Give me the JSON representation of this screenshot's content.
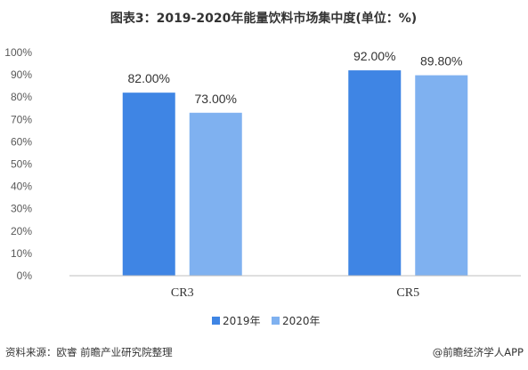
{
  "title": "图表3：2019-2020年能量饮料市场集中度(单位：%)",
  "footer": {
    "source": "资料来源：欧睿 前瞻产业研究院整理",
    "brand": "@前瞻经济学人APP"
  },
  "colors": {
    "series_2019": "#3f85e4",
    "series_2020": "#7fb1f0",
    "axis": "#bfbfbf"
  },
  "chart_data": {
    "type": "bar",
    "title": "图表3：2019-2020年能量饮料市场集中度(单位：%)",
    "categories": [
      "CR3",
      "CR5"
    ],
    "series": [
      {
        "name": "2019年",
        "values": [
          82.0,
          92.0
        ],
        "labels": [
          "82.00%",
          "92.00%"
        ]
      },
      {
        "name": "2020年",
        "values": [
          73.0,
          89.8
        ],
        "labels": [
          "73.00%",
          "89.80%"
        ]
      }
    ],
    "ylim": [
      0,
      100
    ],
    "yticks": [
      "0%",
      "10%",
      "20%",
      "30%",
      "40%",
      "50%",
      "60%",
      "70%",
      "80%",
      "90%",
      "100%"
    ],
    "grid": false,
    "legend": "bottom"
  }
}
